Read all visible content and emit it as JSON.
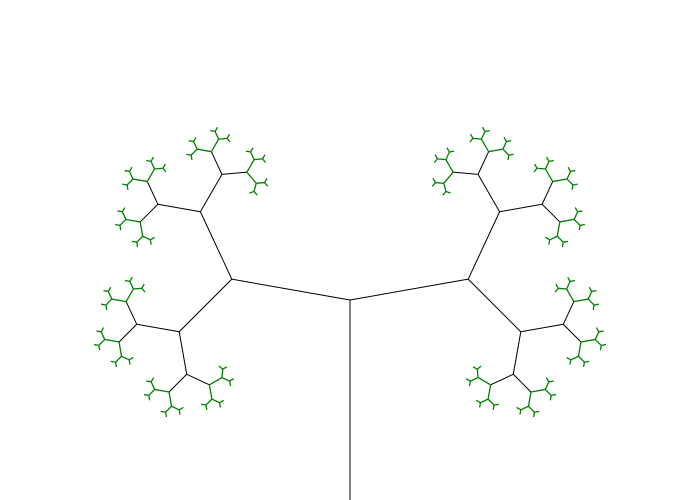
{
  "figure": {
    "subject": "fractal-tree",
    "branch_color": "#000000",
    "leaf_color": "#008000",
    "background_color": "#ffffff",
    "depth": 7,
    "branch_angle_degrees": 55,
    "scale_ratio": 0.58
  }
}
